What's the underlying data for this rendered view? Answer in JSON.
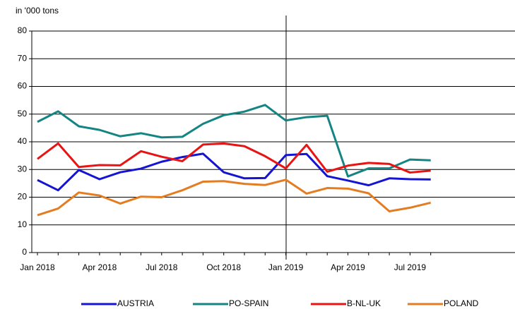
{
  "chart_data": {
    "type": "line",
    "y_label": "in '000 tons",
    "categories": [
      "Jan 2018",
      null,
      null,
      "Apr 2018",
      null,
      null,
      "Jul 2018",
      null,
      null,
      "Oct 2018",
      null,
      null,
      "Jan 2019",
      null,
      null,
      "Apr 2019",
      null,
      null,
      "Jul 2019",
      null
    ],
    "ylim": [
      0,
      80
    ],
    "yticks": [
      0,
      10,
      20,
      30,
      40,
      50,
      60,
      70,
      80
    ],
    "grid": true,
    "legend": "bottom",
    "series": [
      {
        "name": "AUSTRIA",
        "color": "#1414d2",
        "values": [
          26.2,
          22.5,
          29.8,
          26.5,
          29.0,
          30.3,
          32.8,
          34.5,
          35.7,
          29.0,
          26.8,
          26.9,
          35.2,
          35.6,
          27.6,
          26.0,
          24.3,
          26.8,
          26.5,
          26.4
        ]
      },
      {
        "name": "PO-SPAIN",
        "color": "#148582",
        "values": [
          47.2,
          51.0,
          45.6,
          44.3,
          42.0,
          43.1,
          41.6,
          41.8,
          46.5,
          49.6,
          50.9,
          53.3,
          47.7,
          48.9,
          49.4,
          27.5,
          30.4,
          30.4,
          33.6,
          33.3
        ]
      },
      {
        "name": "B-NL-UK",
        "color": "#e81414",
        "values": [
          33.8,
          39.4,
          30.9,
          31.6,
          31.5,
          36.6,
          34.6,
          33.0,
          39.0,
          39.4,
          38.4,
          34.8,
          30.4,
          38.9,
          29.2,
          31.4,
          32.4,
          32.0,
          28.9,
          29.6
        ]
      },
      {
        "name": "POLAND",
        "color": "#e47c22",
        "values": [
          13.5,
          15.9,
          21.7,
          20.6,
          17.7,
          20.2,
          20.0,
          22.5,
          25.6,
          25.8,
          24.8,
          24.4,
          26.3,
          21.3,
          23.3,
          23.1,
          21.4,
          14.9,
          16.2,
          18.0
        ]
      }
    ]
  }
}
